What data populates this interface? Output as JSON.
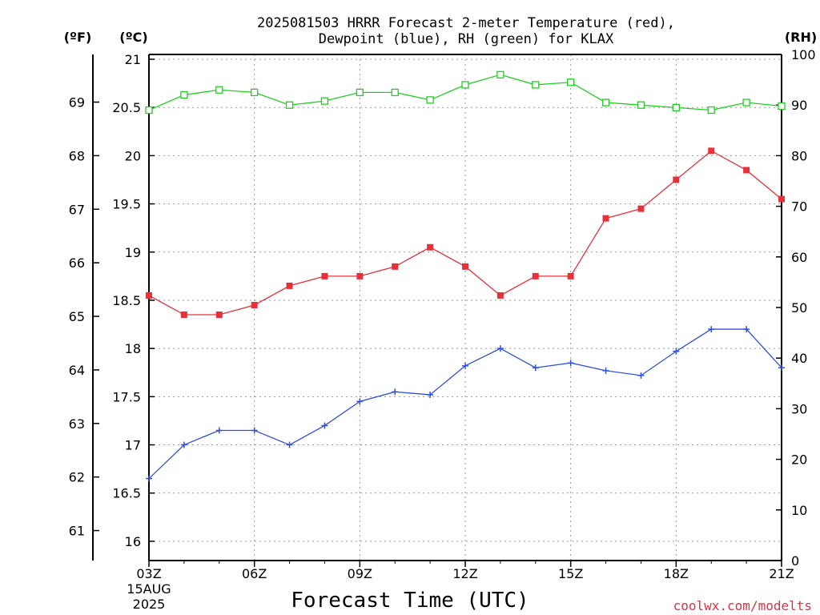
{
  "chart_data": {
    "type": "line",
    "title_line1": "2025081503 HRRR Forecast 2-meter Temperature (red),",
    "title_line2": "Dewpoint (blue), RH (green) for KLAX",
    "left_outer_axis": {
      "label": "(ºF)",
      "ticks": [
        "61",
        "62",
        "63",
        "64",
        "65",
        "66",
        "67",
        "68",
        "69"
      ]
    },
    "left_axis": {
      "label": "(ºC)",
      "ylim": [
        15.8,
        21.05
      ],
      "ticks": [
        "16",
        "16.5",
        "17",
        "17.5",
        "18",
        "18.5",
        "19",
        "19.5",
        "20",
        "20.5",
        "21"
      ]
    },
    "right_axis": {
      "label": "(RH)",
      "ylim": [
        0,
        100
      ],
      "ticks": [
        "0",
        "10",
        "20",
        "30",
        "40",
        "50",
        "60",
        "70",
        "80",
        "90",
        "100"
      ]
    },
    "x_hours": [
      3,
      4,
      5,
      6,
      7,
      8,
      9,
      10,
      11,
      12,
      13,
      14,
      15,
      16,
      17,
      18,
      19,
      20,
      21
    ],
    "x_tick_labels": [
      "03Z",
      "06Z",
      "09Z",
      "12Z",
      "15Z",
      "18Z",
      "21Z"
    ],
    "x_date_line1": "15AUG",
    "x_date_line2": "2025",
    "xlabel": "Forecast Time (UTC)",
    "grid": true,
    "series": [
      {
        "color": "#e8303a",
        "axis": "celsius",
        "marker": "filled-square",
        "values": [
          18.55,
          18.35,
          18.35,
          18.45,
          18.65,
          18.75,
          18.75,
          18.85,
          19.05,
          18.85,
          18.55,
          18.75,
          18.75,
          19.35,
          19.45,
          19.75,
          20.05,
          19.85,
          19.55
        ]
      },
      {
        "color": "#3050e0",
        "axis": "celsius",
        "marker": "plus",
        "values": [
          16.65,
          17.0,
          17.15,
          17.15,
          17.0,
          17.2,
          17.45,
          17.55,
          17.52,
          17.82,
          18.0,
          17.8,
          17.85,
          17.77,
          17.72,
          17.97,
          18.2,
          18.2,
          17.8
        ]
      },
      {
        "color": "#20d020",
        "axis": "rh",
        "marker": "open-square",
        "values": [
          89,
          92,
          93,
          92.5,
          90,
          90.8,
          92.5,
          92.5,
          91,
          94,
          96,
          94,
          94.5,
          90.5,
          90,
          89.5,
          89,
          90.5,
          89.8
        ]
      }
    ]
  },
  "credit": "coolwx.com/modelts"
}
